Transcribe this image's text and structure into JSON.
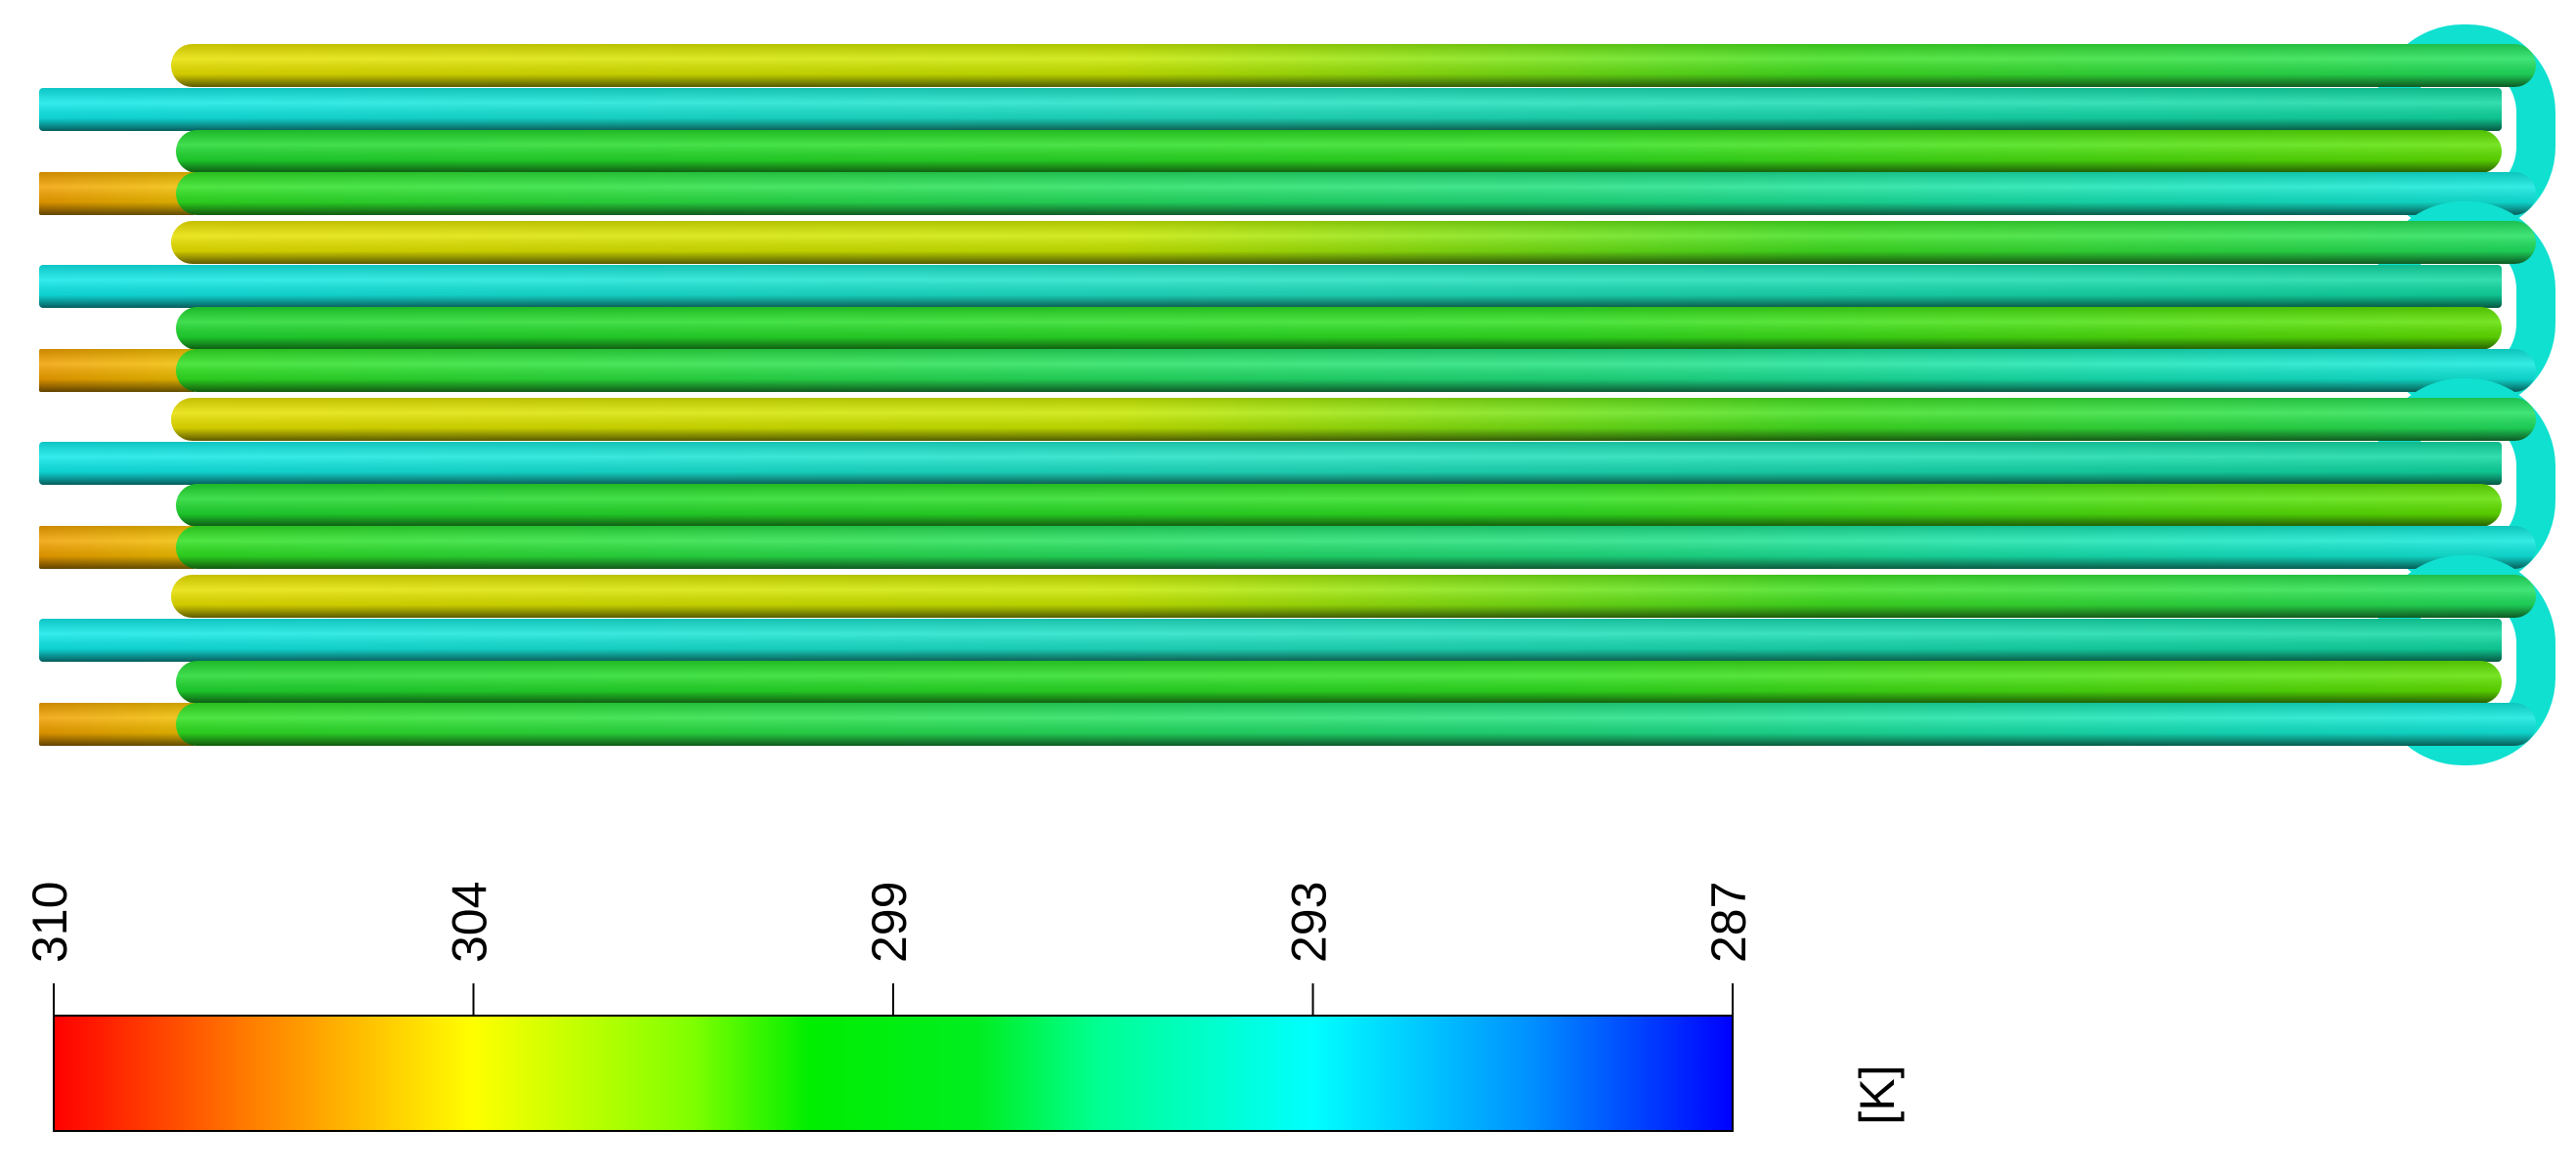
{
  "colorbar": {
    "ticks": [
      310,
      304,
      299,
      293,
      287
    ],
    "unit": "[K]"
  }
}
